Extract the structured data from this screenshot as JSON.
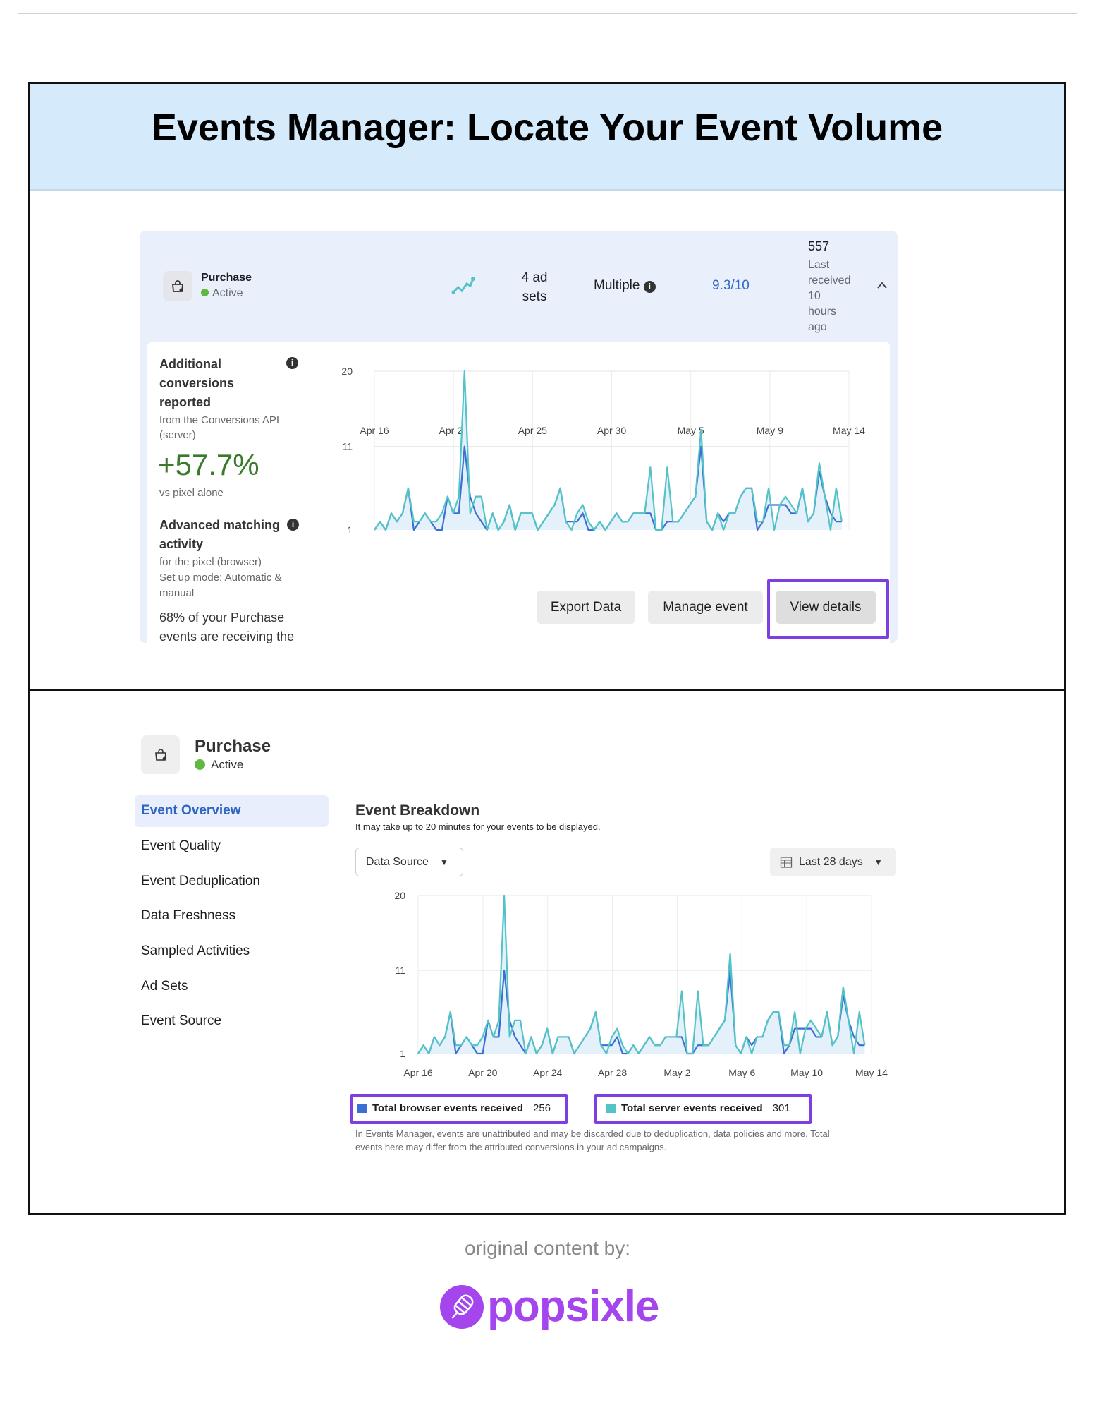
{
  "title": "Events Manager: Locate Your Event Volume",
  "panel1": {
    "event_name": "Purchase",
    "status": "Active",
    "ad_sets": [
      "4 ad",
      "sets"
    ],
    "attribution": "Multiple",
    "score": "9.3/10",
    "count": "557",
    "last_received": [
      "Last",
      "received",
      "10",
      "hours",
      "ago"
    ],
    "additional": {
      "title": [
        "Additional",
        "conversions",
        "reported"
      ],
      "source": [
        "from the Conversions API",
        "(server)"
      ],
      "value": "+57.7%",
      "caption": "vs pixel alone"
    },
    "matching": {
      "title": [
        "Advanced matching",
        "activity"
      ],
      "source": "for the pixel (browser)",
      "mode": [
        "Set up mode: Automatic &",
        "manual"
      ],
      "note": [
        "68% of your Purchase",
        "events are receiving the"
      ]
    },
    "buttons": {
      "export": "Export Data",
      "manage": "Manage event",
      "view": "View details"
    }
  },
  "panel2": {
    "event_name": "Purchase",
    "status": "Active",
    "sidebar": [
      {
        "label": "Event Overview",
        "active": true
      },
      {
        "label": "Event Quality"
      },
      {
        "label": "Event Deduplication"
      },
      {
        "label": "Data Freshness"
      },
      {
        "label": "Sampled Activities"
      },
      {
        "label": "Ad Sets"
      },
      {
        "label": "Event Source"
      }
    ],
    "heading": "Event Breakdown",
    "subheading": "It may take up to 20 minutes for your events to be displayed.",
    "data_source": "Data Source",
    "date_range": "Last 28 days",
    "legend": [
      {
        "label": "Total browser events received",
        "value": "256",
        "color": "#3b6fd6"
      },
      {
        "label": "Total server events received",
        "value": "301",
        "color": "#52c3c6"
      }
    ],
    "footnote": [
      "In Events Manager, events are unattributed and may be discarded due to deduplication, data policies and more. Total",
      "events here may differ from the attributed conversions in your ad campaigns."
    ]
  },
  "footer": {
    "credit": "original content by:",
    "logo": "popsixle",
    "logo_color": "#a445ee"
  },
  "chart_data": [
    {
      "type": "line",
      "x_start": "Apr 16",
      "x_end": "May 14",
      "ylim": [
        1,
        20
      ],
      "yticks": [
        "20",
        "11",
        "1"
      ],
      "xticks": [
        "Apr 16",
        "Apr 21",
        "Apr 25",
        "Apr 30",
        "May 5",
        "May 9",
        "May 14"
      ],
      "series": [
        {
          "color": "#52c3c6",
          "values": [
            1,
            2,
            1,
            3,
            2,
            3,
            6,
            2,
            2,
            3,
            2,
            2,
            3,
            5,
            3,
            5,
            20,
            3,
            5,
            5,
            1,
            3,
            1,
            2,
            4,
            1,
            3,
            3,
            3,
            1,
            2,
            3,
            4,
            6,
            2,
            1,
            3,
            4,
            2,
            1,
            2,
            1,
            2,
            3,
            2,
            2,
            3,
            3,
            3,
            8.5,
            1,
            1,
            8.5,
            2,
            2,
            3,
            4,
            5,
            13,
            2,
            1,
            3,
            1,
            3,
            3,
            5,
            6,
            6,
            2,
            2,
            6,
            1,
            4,
            5,
            4,
            3,
            6,
            2,
            3,
            9,
            5,
            1,
            6,
            2
          ]
        },
        {
          "color": "#3b6fd6",
          "values": [
            1,
            2,
            1,
            3,
            2,
            3,
            6,
            1,
            2,
            3,
            2,
            1,
            1,
            5,
            3,
            3,
            11,
            5,
            3,
            2,
            1,
            3,
            1,
            2,
            4,
            1,
            3,
            3,
            3,
            1,
            2,
            3,
            4,
            6,
            2,
            2,
            2,
            3,
            1,
            1,
            2,
            1,
            2,
            3,
            2,
            2,
            3,
            3,
            3,
            3,
            1,
            1,
            2,
            2,
            2,
            3,
            4,
            5,
            11,
            2,
            1,
            3,
            2,
            3,
            3,
            5,
            6,
            6,
            1,
            2,
            4,
            4,
            4,
            4,
            3,
            3,
            6,
            2,
            3,
            8,
            5,
            3,
            2,
            2
          ]
        }
      ]
    },
    {
      "type": "line",
      "x_start": "Apr 16",
      "x_end": "May 14",
      "ylim": [
        1,
        20
      ],
      "yticks": [
        "20",
        "11",
        "1"
      ],
      "xticks": [
        "Apr 16",
        "Apr 20",
        "Apr 24",
        "Apr 28",
        "May 2",
        "May 6",
        "May 10",
        "May 14"
      ],
      "series": [
        {
          "name": "Total server events received",
          "color": "#52c3c6",
          "values": [
            1,
            2,
            1,
            3,
            2,
            3,
            6,
            2,
            2,
            3,
            2,
            2,
            3,
            5,
            3,
            5,
            20,
            3,
            5,
            5,
            1,
            3,
            1,
            2,
            4,
            1,
            3,
            3,
            3,
            1,
            2,
            3,
            4,
            6,
            2,
            1,
            3,
            4,
            2,
            1,
            2,
            1,
            2,
            3,
            2,
            2,
            3,
            3,
            3,
            8.5,
            1,
            1,
            8.5,
            2,
            2,
            3,
            4,
            5,
            13,
            2,
            1,
            3,
            1,
            3,
            3,
            5,
            6,
            6,
            2,
            2,
            6,
            1,
            4,
            5,
            4,
            3,
            6,
            2,
            3,
            9,
            5,
            1,
            6,
            2
          ]
        },
        {
          "name": "Total browser events received",
          "color": "#3b6fd6",
          "values": [
            1,
            2,
            1,
            3,
            2,
            3,
            6,
            1,
            2,
            3,
            2,
            1,
            1,
            5,
            3,
            3,
            11,
            5,
            3,
            2,
            1,
            3,
            1,
            2,
            4,
            1,
            3,
            3,
            3,
            1,
            2,
            3,
            4,
            6,
            2,
            2,
            2,
            3,
            1,
            1,
            2,
            1,
            2,
            3,
            2,
            2,
            3,
            3,
            3,
            3,
            1,
            1,
            2,
            2,
            2,
            3,
            4,
            5,
            11,
            2,
            1,
            3,
            2,
            3,
            3,
            5,
            6,
            6,
            1,
            2,
            4,
            4,
            4,
            4,
            3,
            3,
            6,
            2,
            3,
            8,
            5,
            3,
            2,
            2
          ]
        }
      ]
    }
  ]
}
